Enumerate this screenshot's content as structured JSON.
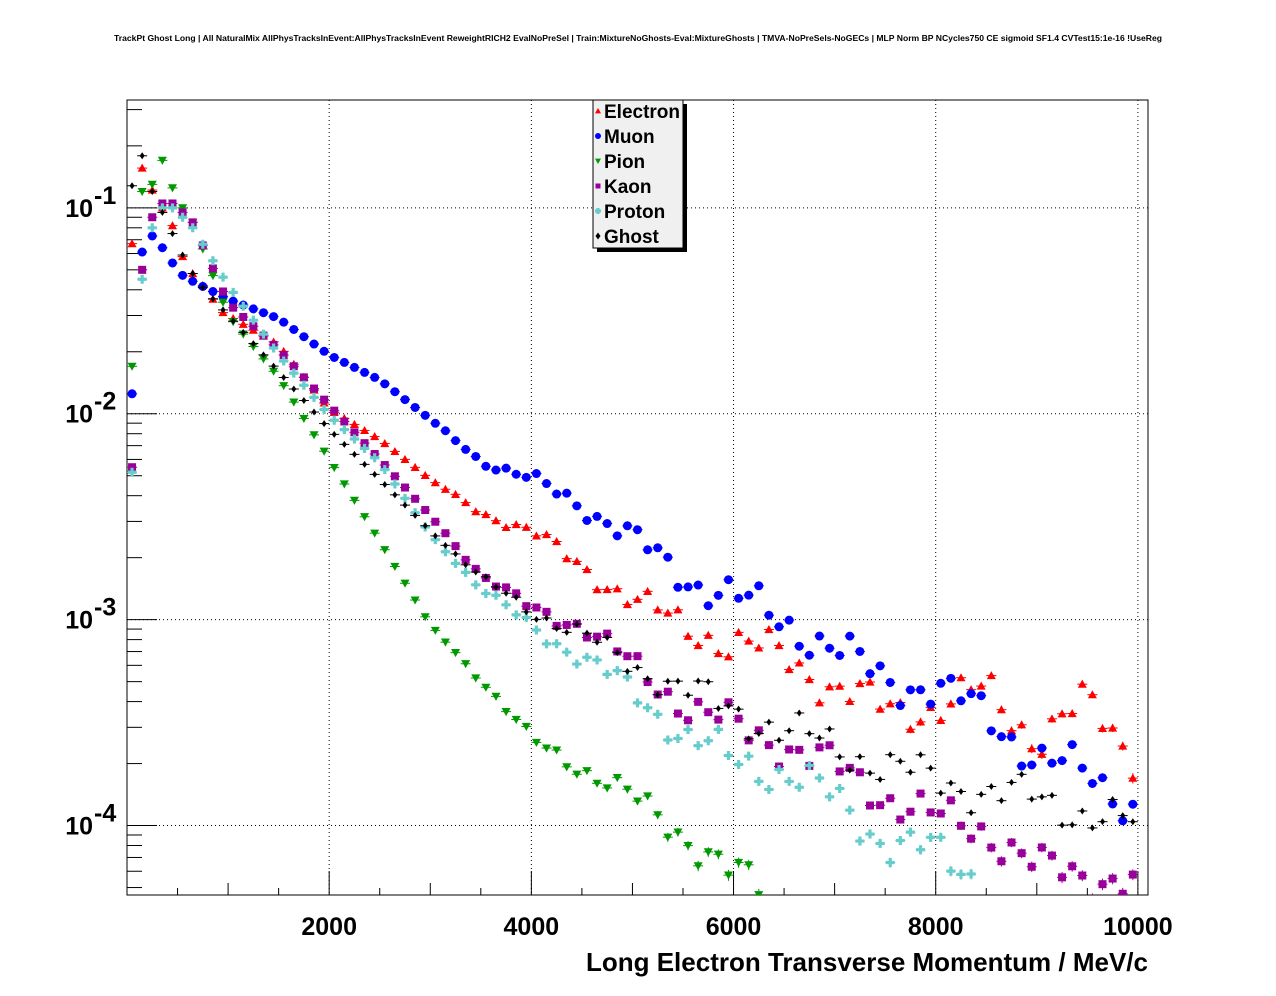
{
  "chart_data": {
    "type": "scatter",
    "title": "TrackPt Ghost Long | All NaturalMix AllPhysTracksInEvent:AllPhysTracksInEvent ReweightRICH2 EvalNoPreSel | Train:MixtureNoGhosts-Eval:MixtureGhosts | TMVA-NoPreSels-NoGECs | MLP Norm BP NCycles750 CE sigmoid SF1.4 CVTest15:1e-16 !UseReg",
    "xlabel": "Long Electron Transverse Momentum / MeV/c",
    "ylabel": "",
    "xlim": [
      0,
      10100
    ],
    "ylim": [
      4.6e-05,
      0.334
    ],
    "yscale": "log",
    "grid": true,
    "legend_position": "top-center",
    "bin_width": 100,
    "x_tick_labels": [
      "2000",
      "4000",
      "6000",
      "8000",
      "10000"
    ],
    "x_ticks": [
      2000,
      4000,
      6000,
      8000,
      10000
    ],
    "y_ticks": [
      0.1,
      0.01,
      0.001,
      0.0001
    ],
    "y_tick_labels": [
      {
        "base": "10",
        "exp": "-1"
      },
      {
        "base": "10",
        "exp": "-2"
      },
      {
        "base": "10",
        "exp": "-3"
      },
      {
        "base": "10",
        "exp": "-4"
      }
    ],
    "series": [
      {
        "name": "Electron",
        "color": "#ff0000",
        "marker": "triangle-up",
        "x": [
          50,
          150,
          250,
          350,
          450,
          550,
          650,
          750,
          850,
          950,
          1500,
          2000,
          2500,
          3000,
          3500,
          4000,
          4500,
          5000,
          5500,
          6000,
          6500,
          7000,
          7500,
          8000,
          8500,
          9000,
          9500,
          10000
        ],
        "y": [
          0.067,
          0.156,
          0.122,
          0.1,
          0.082,
          0.058,
          0.048,
          0.042,
          0.036,
          0.031,
          0.0216,
          0.0105,
          0.0075,
          0.0048,
          0.0033,
          0.0027,
          0.0018,
          0.00125,
          0.00094,
          0.00075,
          0.00068,
          0.00046,
          0.00037,
          0.00037,
          0.00046,
          0.00026,
          0.0004,
          0.00021
        ]
      },
      {
        "name": "Muon",
        "color": "#0000ff",
        "marker": "circle",
        "x": [
          50,
          150,
          250,
          350,
          450,
          550,
          650,
          1000,
          1500,
          2000,
          2500,
          3000,
          3500,
          4000,
          4500,
          5000,
          5500,
          6000,
          6500,
          7000,
          7500,
          8000,
          8500,
          9000,
          9500,
          10000
        ],
        "y": [
          0.0125,
          0.061,
          0.073,
          0.064,
          0.054,
          0.047,
          0.044,
          0.036,
          0.029,
          0.0193,
          0.0146,
          0.0094,
          0.0059,
          0.0048,
          0.0036,
          0.0025,
          0.0016,
          0.0013,
          0.00098,
          0.00072,
          0.00051,
          0.00046,
          0.00035,
          0.00021,
          0.00018,
          0.00012
        ]
      },
      {
        "name": "Pion",
        "color": "#009900",
        "marker": "triangle-down",
        "x": [
          50,
          150,
          250,
          350,
          450,
          550,
          650,
          1000,
          1500,
          2000,
          2500,
          3000,
          3500,
          4000,
          4500,
          5000,
          5500,
          6000,
          6300
        ],
        "y": [
          0.017,
          0.12,
          0.13,
          0.17,
          0.125,
          0.1,
          0.085,
          0.03,
          0.015,
          0.006,
          0.0024,
          0.00094,
          0.00051,
          0.00026,
          0.00019,
          0.000135,
          9.1e-05,
          5.6e-05,
          4.9e-05
        ]
      },
      {
        "name": "Kaon",
        "color": "#990099",
        "marker": "square",
        "x": [
          50,
          150,
          250,
          350,
          450,
          550,
          650,
          1000,
          1500,
          2000,
          2500,
          3000,
          3500,
          4000,
          4500,
          5000,
          5500,
          6000,
          6500,
          7000,
          7500,
          8000,
          8500,
          9000,
          9500,
          10000
        ],
        "y": [
          0.0055,
          0.05,
          0.09,
          0.105,
          0.105,
          0.095,
          0.085,
          0.0345,
          0.0205,
          0.011,
          0.006,
          0.0032,
          0.00165,
          0.00113,
          0.00094,
          0.0006,
          0.00039,
          0.0003,
          0.00025,
          0.00019,
          0.00014,
          0.000108,
          9.6e-05,
          6.2e-05,
          5.8e-05,
          5.2e-05
        ]
      },
      {
        "name": "Proton",
        "color": "#66cccc",
        "marker": "cross",
        "x": [
          50,
          150,
          250,
          350,
          450,
          550,
          650,
          1000,
          1500,
          2000,
          2500,
          3000,
          3500,
          4000,
          4500,
          5000,
          5500,
          6000,
          6500,
          7000,
          7500,
          8000,
          8500
        ],
        "y": [
          0.0052,
          0.045,
          0.08,
          0.1,
          0.1,
          0.09,
          0.08,
          0.042,
          0.0193,
          0.0098,
          0.0058,
          0.0026,
          0.0014,
          0.00094,
          0.00064,
          0.00046,
          0.00027,
          0.00021,
          0.00018,
          0.000135,
          8.3e-05,
          7.4e-05,
          5.2e-05
        ]
      },
      {
        "name": "Ghost",
        "color": "#000000",
        "marker": "diamond",
        "x": [
          50,
          150,
          250,
          350,
          450,
          550,
          650,
          750,
          1000,
          1500,
          2000,
          2500,
          3000,
          3500,
          4000,
          4500,
          5000,
          5500,
          6000,
          6500,
          7000,
          7500,
          8000,
          8500,
          9000,
          9500,
          10000
        ],
        "y": [
          0.128,
          0.179,
          0.12,
          0.095,
          0.075,
          0.059,
          0.048,
          0.041,
          0.03,
          0.016,
          0.0084,
          0.0048,
          0.0027,
          0.0016,
          0.0011,
          0.00085,
          0.0006,
          0.00046,
          0.00036,
          0.00029,
          0.00024,
          0.000196,
          0.000166,
          0.000146,
          0.000135,
          0.000114,
          9.9e-05
        ]
      }
    ]
  }
}
